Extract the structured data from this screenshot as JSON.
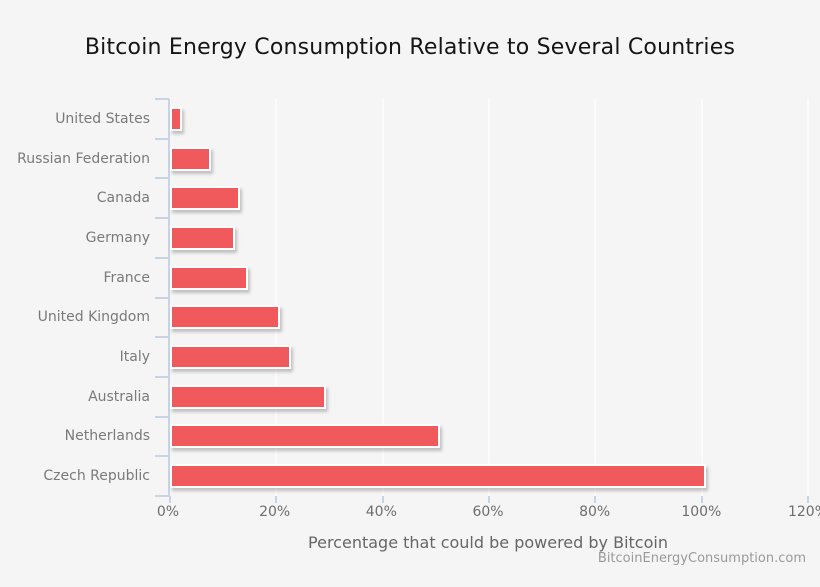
{
  "title": "Bitcoin Energy Consumption Relative to Several Countries",
  "watermark": "BitcoinEnergyConsumption.com",
  "colors": {
    "background": "#f5f5f5",
    "bar": "#f05a5c",
    "bar_border": "#ffffff",
    "axis": "#c9d3e6",
    "gridline": "#fbfbfb",
    "title_text": "#151515",
    "label_text": "#7a7a7a",
    "tick_text": "#6e6e6e",
    "watermark_text": "#9a9a9a"
  },
  "chart_data": {
    "type": "bar",
    "orientation": "horizontal",
    "title": "Bitcoin Energy Consumption Relative to Several Countries",
    "categories": [
      "United States",
      "Russian Federation",
      "Canada",
      "Germany",
      "France",
      "United Kingdom",
      "Italy",
      "Australia",
      "Netherlands",
      "Czech Republic"
    ],
    "values": [
      1.5,
      7,
      12.5,
      11.5,
      14,
      20,
      22,
      28.5,
      50,
      100
    ],
    "unit": "%",
    "xlabel": "Percentage that could be powered by Bitcoin",
    "ylabel": "",
    "xlim": [
      0,
      120
    ],
    "x_ticks": [
      "0%",
      "20%",
      "40%",
      "60%",
      "80%",
      "100%",
      "120%"
    ],
    "x_tick_values": [
      0,
      20,
      40,
      60,
      80,
      100,
      120
    ],
    "grid": true,
    "legend": false,
    "source": "BitcoinEnergyConsumption.com"
  }
}
